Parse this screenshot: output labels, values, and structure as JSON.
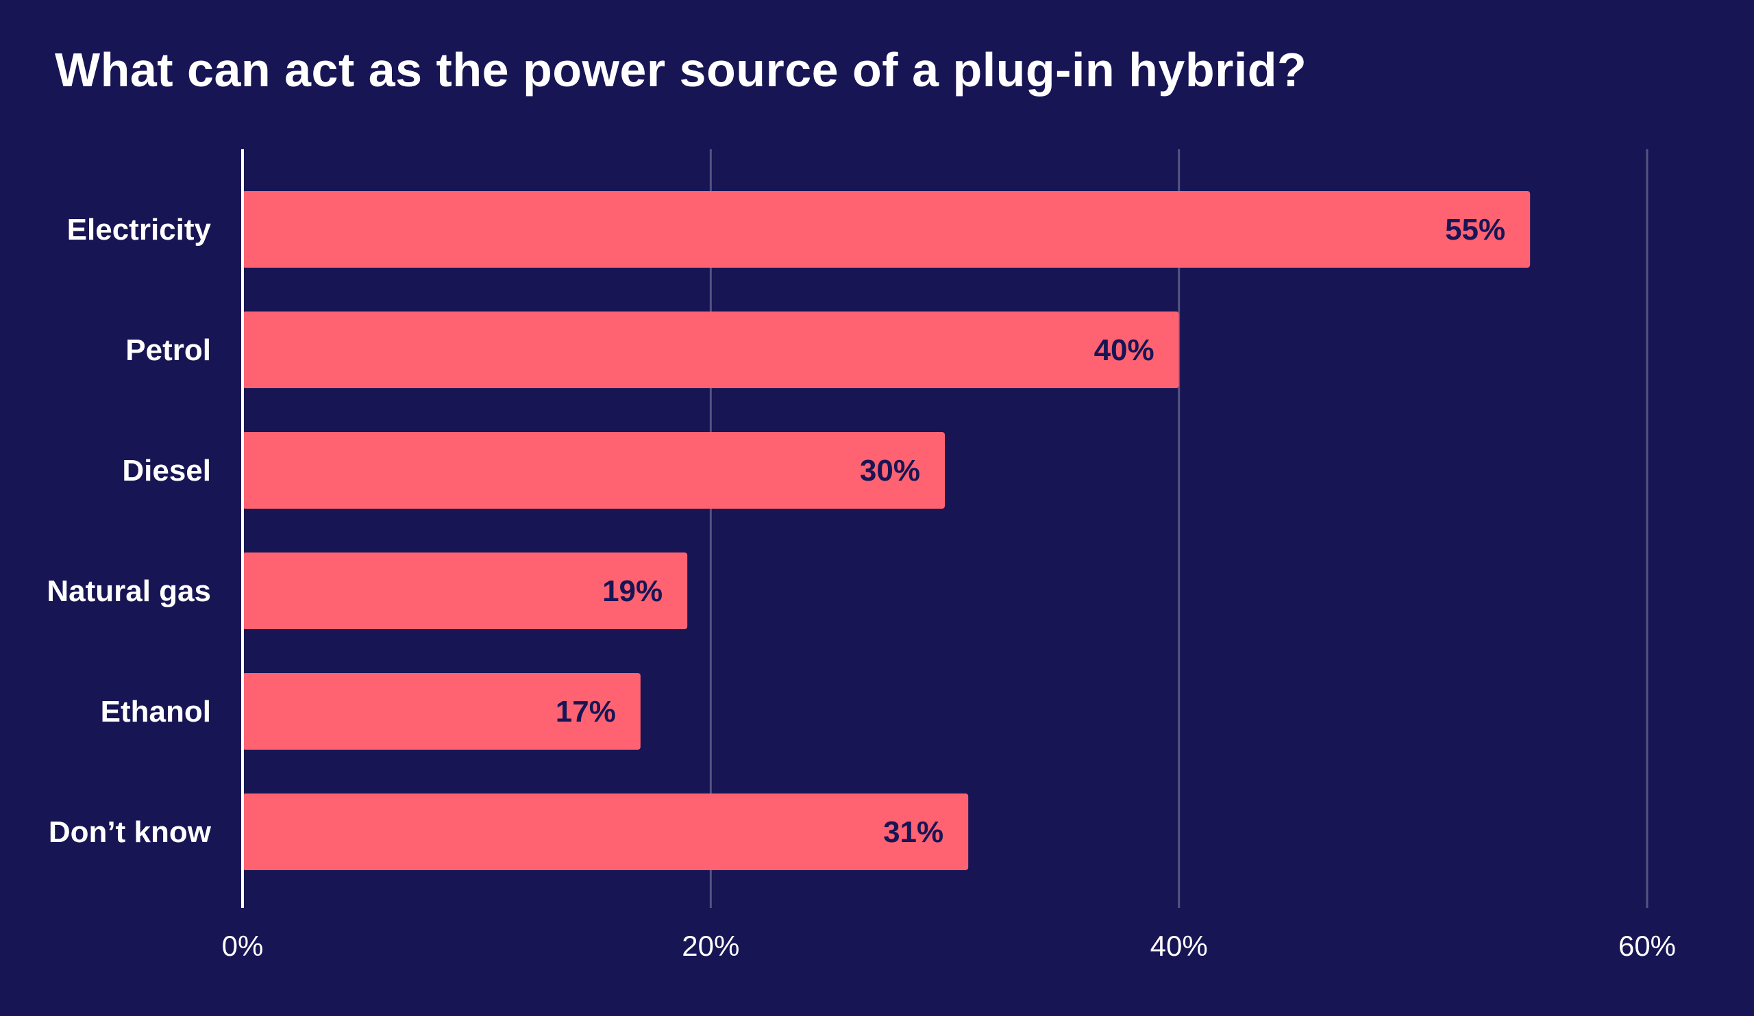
{
  "chart_data": {
    "type": "bar",
    "orientation": "horizontal",
    "title": "What can act as the power source of a plug-in hybrid?",
    "categories": [
      "Electricity",
      "Petrol",
      "Diesel",
      "Natural gas",
      "Ethanol",
      "Don’t know"
    ],
    "values": [
      55,
      40,
      30,
      19,
      17,
      31
    ],
    "value_labels": [
      "55%",
      "40%",
      "30%",
      "19%",
      "17%",
      "31%"
    ],
    "xlim": [
      0,
      60
    ],
    "xticks": [
      0,
      20,
      40,
      60
    ],
    "xtick_labels": [
      "0%",
      "20%",
      "40%",
      "60%"
    ],
    "xlabel": "",
    "ylabel": "",
    "grid": true,
    "legend": "none",
    "colors": {
      "background": "#181555",
      "bar": "#ff6372",
      "value_text": "#181555",
      "text": "#ffffff",
      "gridline": "#55537f",
      "axis": "#ffffff"
    }
  }
}
